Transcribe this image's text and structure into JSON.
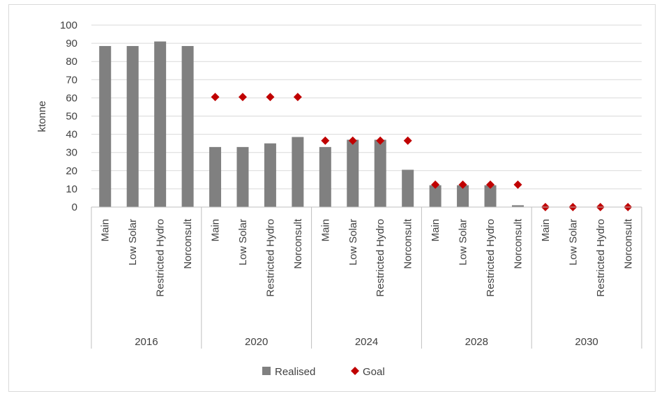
{
  "chart_data": {
    "type": "bar",
    "title": "",
    "xlabel": "",
    "ylabel": "ktonne",
    "ylim": [
      0,
      100
    ],
    "yticks": [
      0,
      10,
      20,
      30,
      40,
      50,
      60,
      70,
      80,
      90,
      100
    ],
    "grid": true,
    "legend_position": "bottom",
    "groups": [
      {
        "label": "2016",
        "categories": [
          "Main",
          "Low Solar",
          "Restricted Hydro",
          "Norconsult"
        ]
      },
      {
        "label": "2020",
        "categories": [
          "Main",
          "Low Solar",
          "Restricted Hydro",
          "Norconsult"
        ]
      },
      {
        "label": "2024",
        "categories": [
          "Main",
          "Low Solar",
          "Restricted Hydro",
          "Norconsult"
        ]
      },
      {
        "label": "2028",
        "categories": [
          "Main",
          "Low Solar",
          "Restricted Hydro",
          "Norconsult"
        ]
      },
      {
        "label": "2030",
        "categories": [
          "Main",
          "Low Solar",
          "Restricted Hydro",
          "Norconsult"
        ]
      }
    ],
    "series": [
      {
        "name": "Realised",
        "type": "bar",
        "color": "#808080",
        "values": [
          88.5,
          88.5,
          91,
          88.5,
          33,
          33,
          35,
          38.5,
          33,
          37,
          37,
          20.5,
          12,
          12,
          12,
          1,
          0,
          0,
          0,
          0
        ]
      },
      {
        "name": "Goal",
        "type": "marker",
        "marker": "diamond",
        "color": "#c00000",
        "values": [
          null,
          null,
          null,
          null,
          60.5,
          60.5,
          60.5,
          60.5,
          36.5,
          36.5,
          36.5,
          36.5,
          12.3,
          12.3,
          12.3,
          12.3,
          0,
          0,
          0,
          0
        ]
      }
    ]
  }
}
